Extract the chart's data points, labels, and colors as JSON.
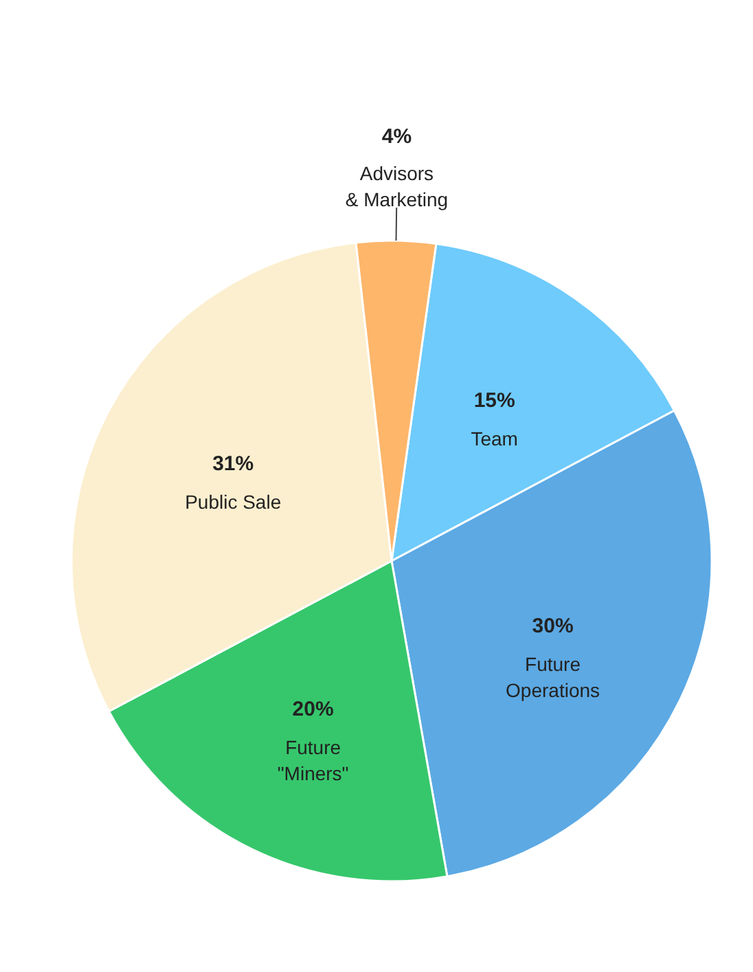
{
  "chart_data": {
    "type": "pie",
    "categories": [
      "Team",
      "Future Operations",
      "Future \"Miners\"",
      "Public Sale",
      "Advisors & Marketing"
    ],
    "values": [
      15,
      30,
      20,
      31,
      4
    ],
    "colors": [
      "#6ecbfb",
      "#5ca9e4",
      "#36c76c",
      "#fcefcf",
      "#fdb66a"
    ],
    "value_labels": [
      "15%",
      "30%",
      "20%",
      "31%",
      "4%"
    ]
  }
}
